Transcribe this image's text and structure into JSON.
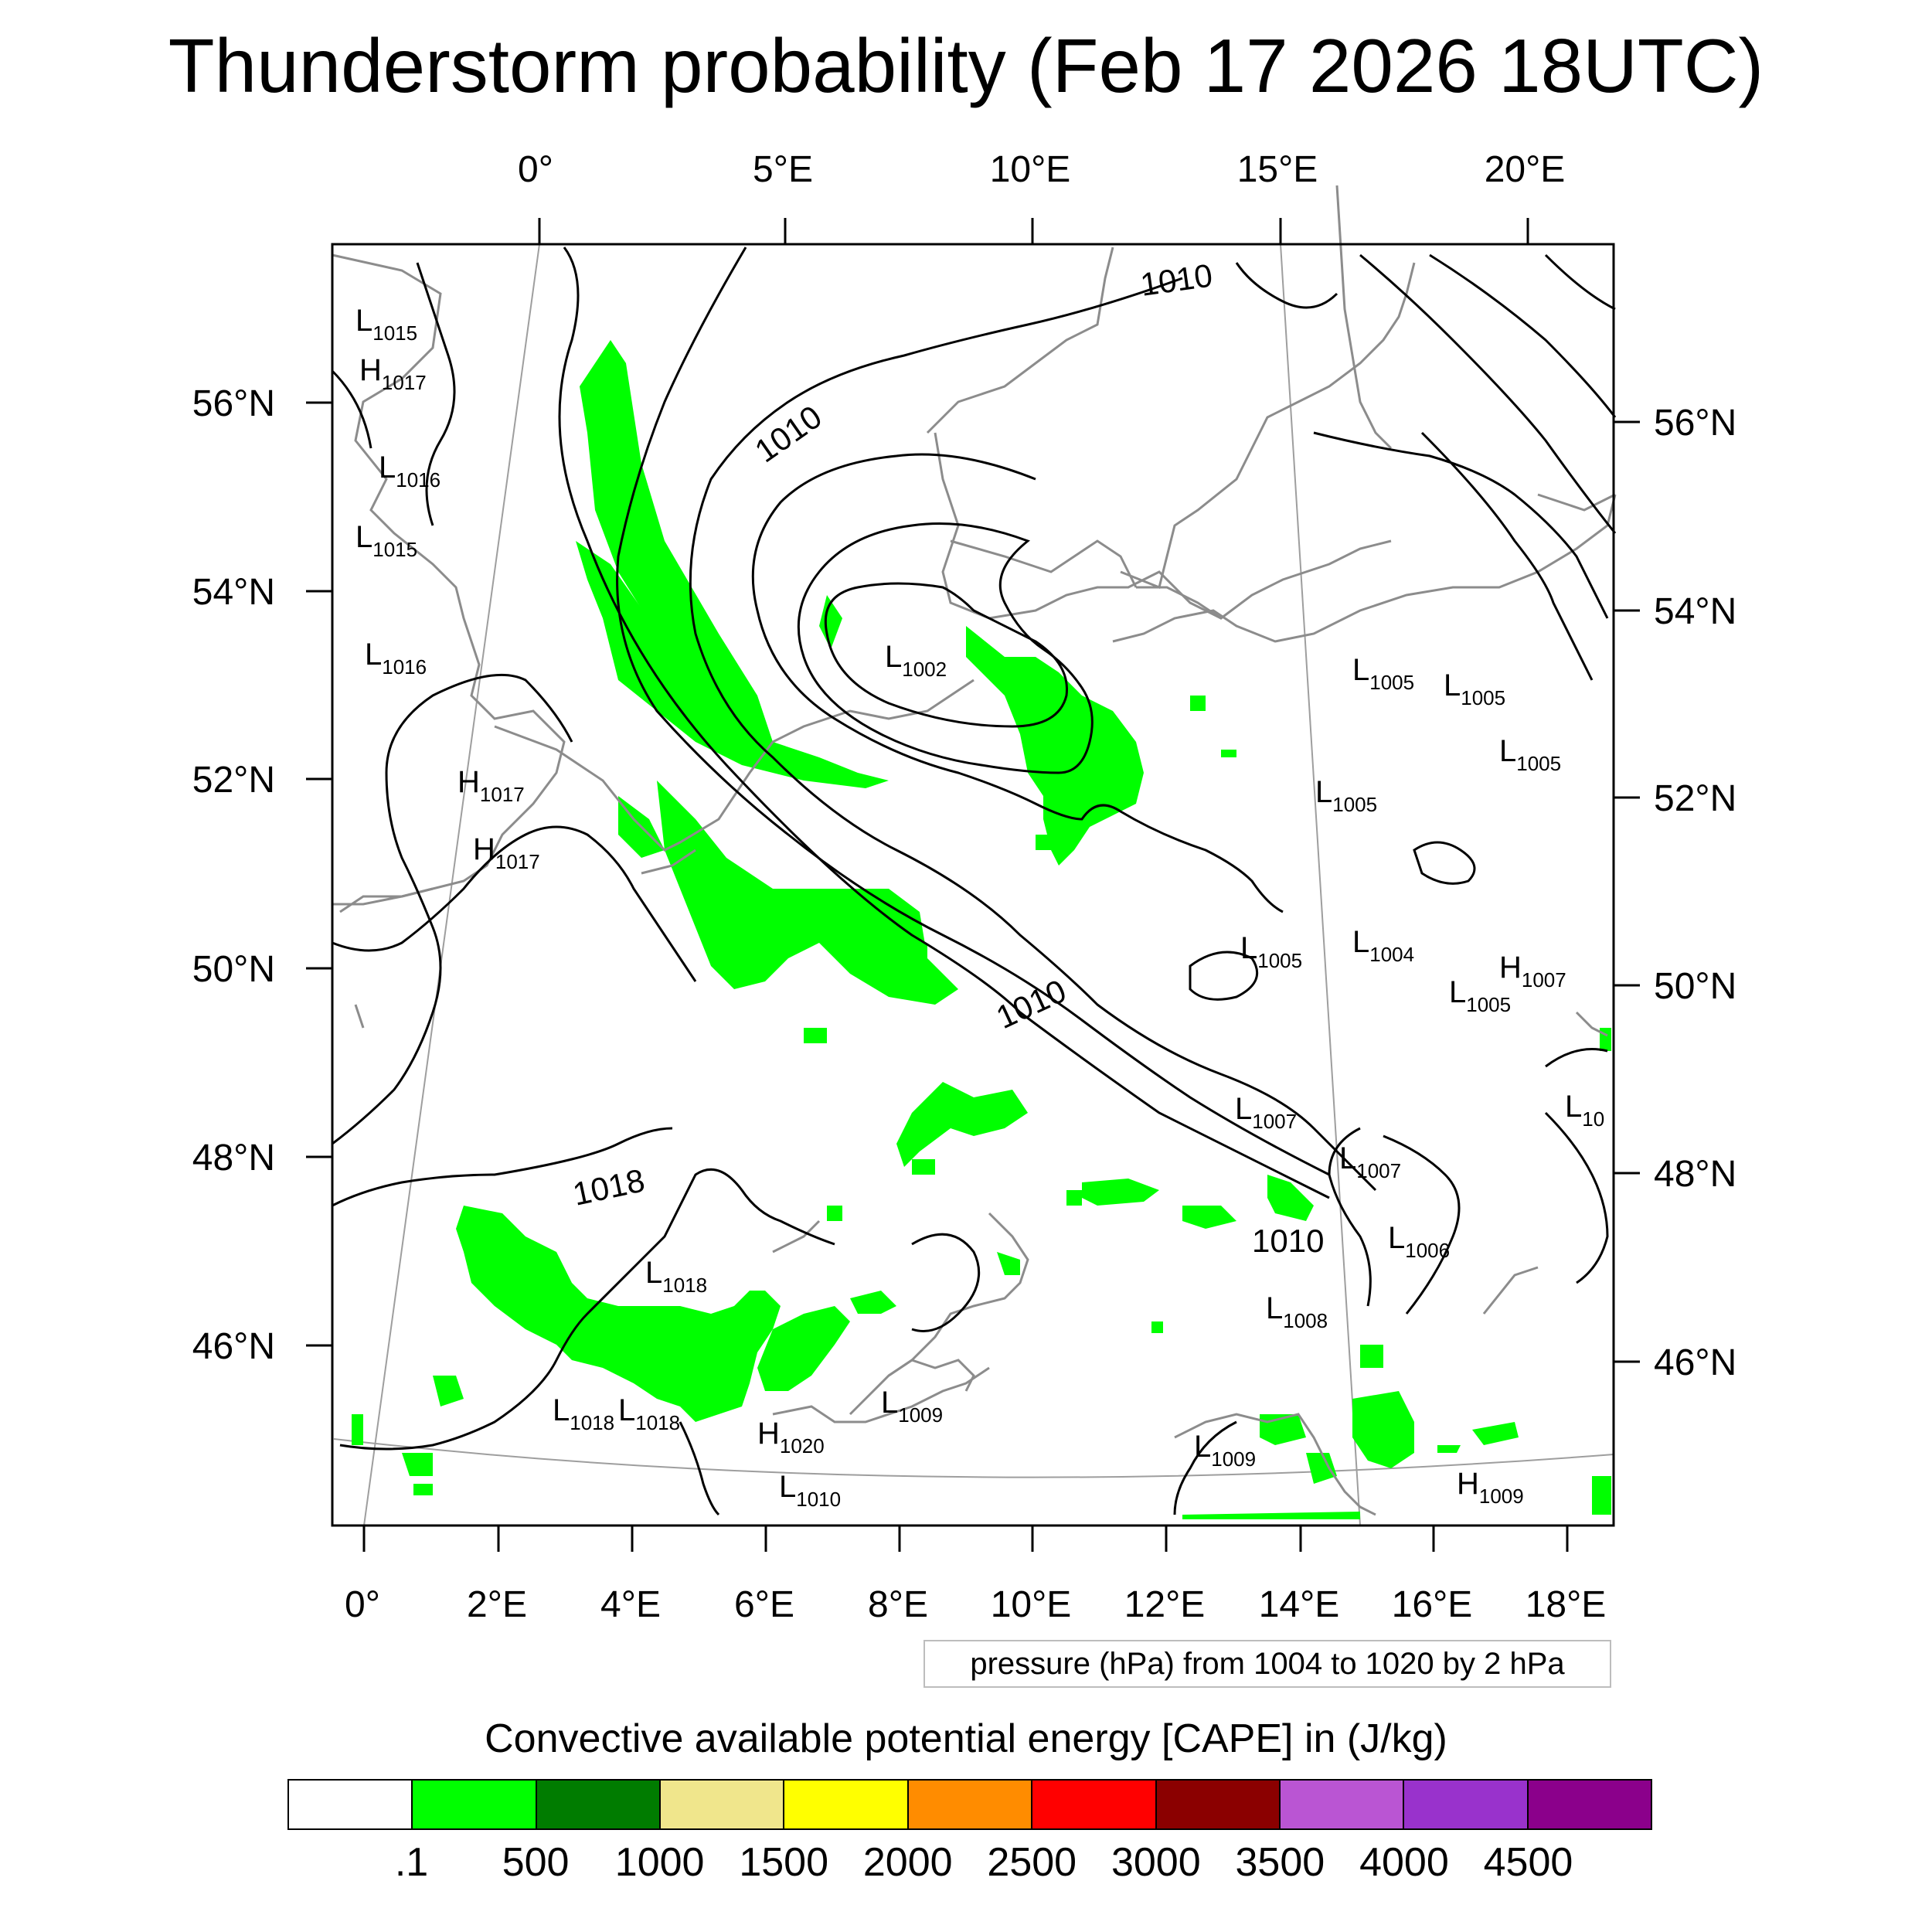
{
  "title": "Thunderstorm probability (Feb 17 2026 18UTC)",
  "top_axis_labels": [
    "0°",
    "5°E",
    "10°E",
    "15°E",
    "20°E"
  ],
  "bottom_axis_labels": [
    "0°",
    "2°E",
    "4°E",
    "6°E",
    "8°E",
    "10°E",
    "12°E",
    "14°E",
    "16°E",
    "18°E"
  ],
  "left_axis_labels": [
    "56°N",
    "54°N",
    "52°N",
    "50°N",
    "48°N",
    "46°N"
  ],
  "right_axis_labels": [
    "56°N",
    "54°N",
    "52°N",
    "50°N",
    "48°N",
    "46°N"
  ],
  "contour_labels": [
    "1010",
    "1010",
    "1010",
    "1010",
    "1018"
  ],
  "pressure_centers": [
    {
      "type": "L",
      "value": "1015"
    },
    {
      "type": "H",
      "value": "1017"
    },
    {
      "type": "L",
      "value": "1016"
    },
    {
      "type": "L",
      "value": "1015"
    },
    {
      "type": "L",
      "value": "1016"
    },
    {
      "type": "H",
      "value": "1017"
    },
    {
      "type": "H",
      "value": "1017"
    },
    {
      "type": "L",
      "value": "1002"
    },
    {
      "type": "L",
      "value": "1005"
    },
    {
      "type": "L",
      "value": "1005"
    },
    {
      "type": "L",
      "value": "1005"
    },
    {
      "type": "L",
      "value": "1005"
    },
    {
      "type": "L",
      "value": "1005"
    },
    {
      "type": "L",
      "value": "1004"
    },
    {
      "type": "H",
      "value": "1007"
    },
    {
      "type": "L",
      "value": "1005"
    },
    {
      "type": "L",
      "value": "10"
    },
    {
      "type": "L",
      "value": "1007"
    },
    {
      "type": "L",
      "value": "1007"
    },
    {
      "type": "L",
      "value": "1006"
    },
    {
      "type": "L",
      "value": "1008"
    },
    {
      "type": "L",
      "value": "1018"
    },
    {
      "type": "L",
      "value": "1018"
    },
    {
      "type": "L",
      "value": "1018"
    },
    {
      "type": "L",
      "value": "1009"
    },
    {
      "type": "H",
      "value": "1020"
    },
    {
      "type": "L",
      "value": "1010"
    },
    {
      "type": "L",
      "value": "1009"
    },
    {
      "type": "H",
      "value": "1009"
    }
  ],
  "pressure_note": "pressure (hPa) from 1004 to 1020 by 2 hPa",
  "colorbar": {
    "title": "Convective available potential energy [CAPE] in (J/kg)",
    "colors": [
      "#ffffff",
      "#00ff00",
      "#007c00",
      "#f0e68c",
      "#ffff00",
      "#ff8c00",
      "#ff0000",
      "#8b0000",
      "#ba55d3",
      "#9932cc",
      "#8b008b"
    ],
    "labels": [
      ".1",
      "500",
      "1000",
      "1500",
      "2000",
      "2500",
      "3000",
      "3500",
      "4000",
      "4500"
    ]
  },
  "style": {
    "cape_green": "#00ff00",
    "coast_gray": "#8c8c8c",
    "contour_black": "#000000"
  }
}
